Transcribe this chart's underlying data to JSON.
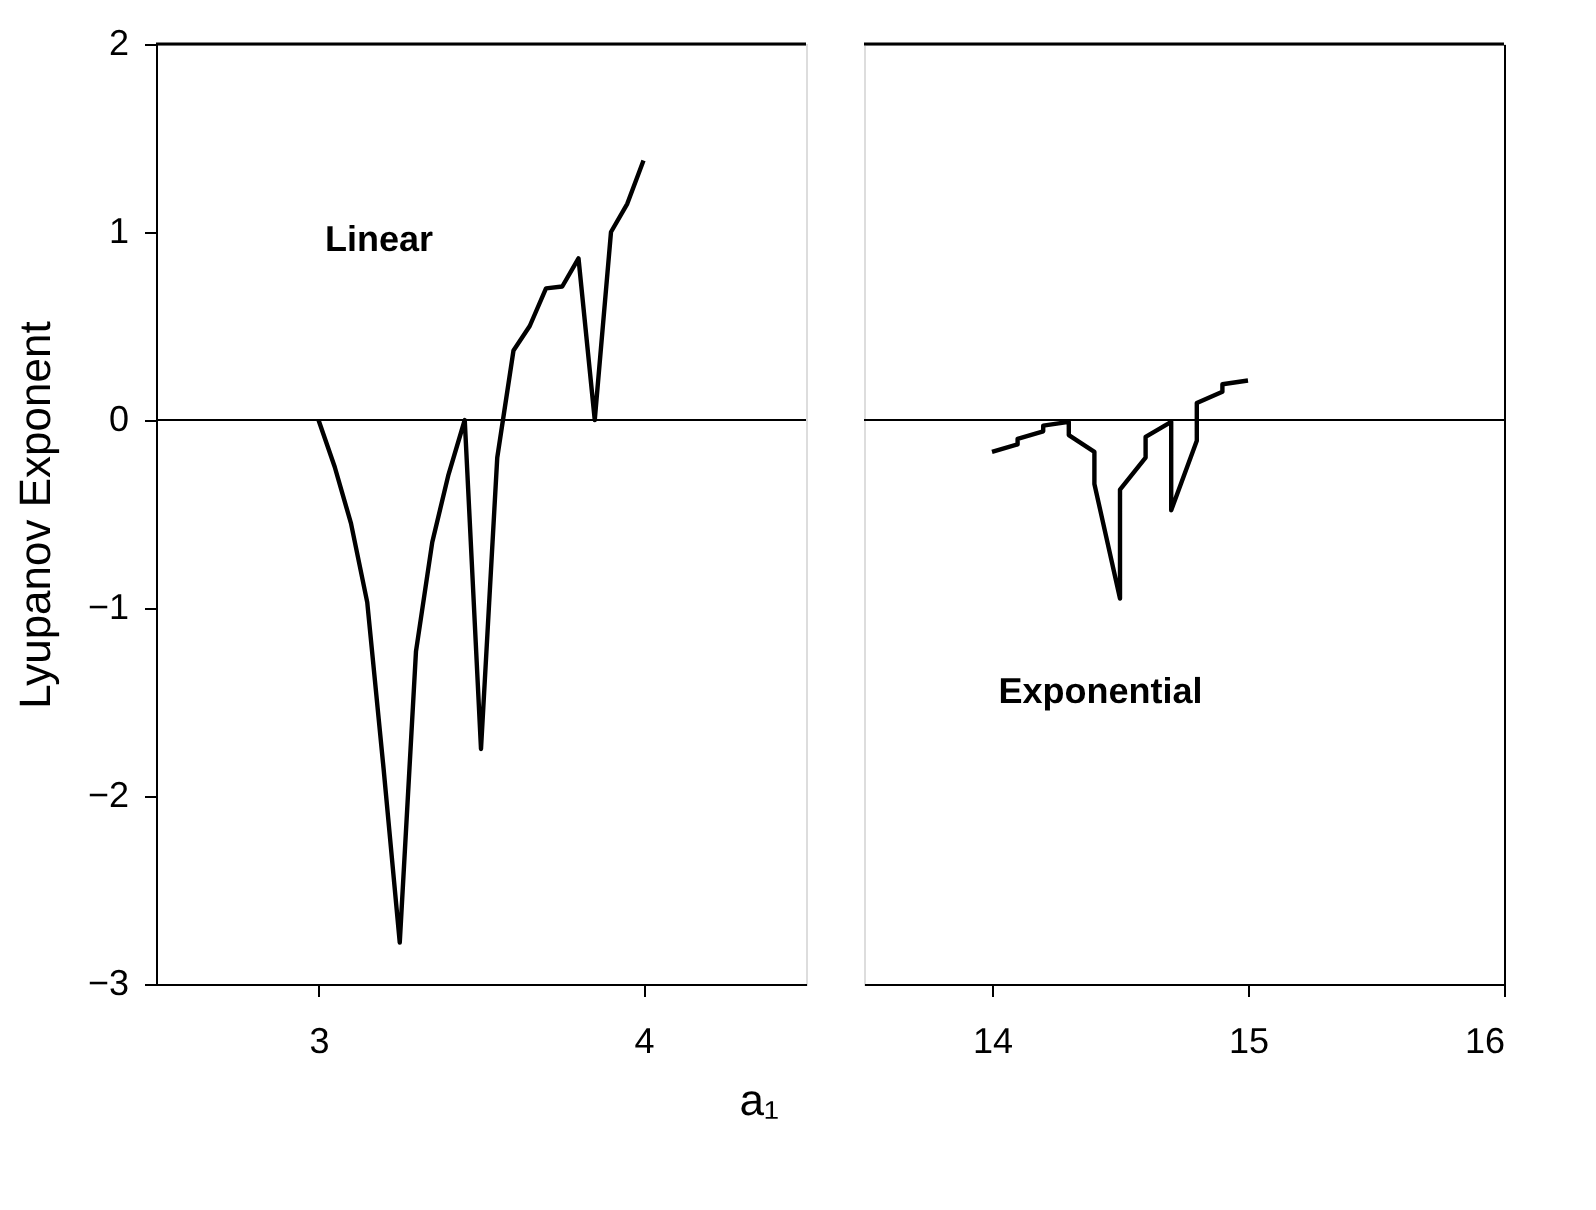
{
  "chart_data": [
    {
      "type": "line",
      "ylabel": "Lyupanov Exponent",
      "xlabel": "a₁",
      "xlim": [
        2.5,
        4.5
      ],
      "xticks": [
        3,
        4
      ],
      "ylim": [
        -3,
        2
      ],
      "yticks": [
        -3,
        -2,
        -1,
        0,
        1,
        2
      ],
      "grid": false,
      "legend": false,
      "marker": "none",
      "line_style": "solid",
      "annotations": [
        "Linear"
      ],
      "ref_lines": [
        {
          "axis": "y",
          "value": 0,
          "color": "#000000"
        }
      ],
      "series": [
        {
          "color": "#000000",
          "x": [
            3.0,
            3.05,
            3.1,
            3.15,
            3.2,
            3.25,
            3.3,
            3.35,
            3.4,
            3.45,
            3.5,
            3.55,
            3.6,
            3.65,
            3.7,
            3.75,
            3.8,
            3.85,
            3.9,
            3.95,
            4.0
          ],
          "values": [
            0,
            -0.25,
            -0.55,
            -0.97,
            -1.85,
            -2.78,
            -1.23,
            -0.65,
            -0.29,
            0,
            -1.75,
            -0.2,
            0.37,
            0.5,
            0.7,
            0.71,
            0.86,
            0,
            1.0,
            1.15,
            1.38
          ]
        }
      ]
    },
    {
      "type": "line",
      "xlim": [
        13.5,
        16
      ],
      "xticks": [
        14,
        15,
        16
      ],
      "ylim": [
        -3,
        2
      ],
      "tick_labels": "x",
      "grid": false,
      "legend": false,
      "marker": "none",
      "line_style": "solid",
      "annotations": [
        "Exponential"
      ],
      "ref_lines": [
        {
          "axis": "y",
          "value": 0,
          "color": "#000000"
        }
      ],
      "series": [
        {
          "color": "#000000",
          "x": [
            14.0,
            14.1,
            14.1,
            14.2,
            14.2,
            14.3,
            14.3,
            14.4,
            14.4,
            14.5,
            14.5,
            14.6,
            14.6,
            14.7,
            14.7,
            14.8,
            14.8,
            14.9,
            14.9,
            15.0
          ],
          "values": [
            -0.17,
            -0.13,
            -0.1,
            -0.06,
            -0.03,
            -0.01,
            -0.08,
            -0.17,
            -0.34,
            -0.95,
            -0.37,
            -0.2,
            -0.09,
            -0.01,
            -0.48,
            -0.11,
            0.09,
            0.15,
            0.19,
            0.21
          ]
        }
      ]
    }
  ]
}
